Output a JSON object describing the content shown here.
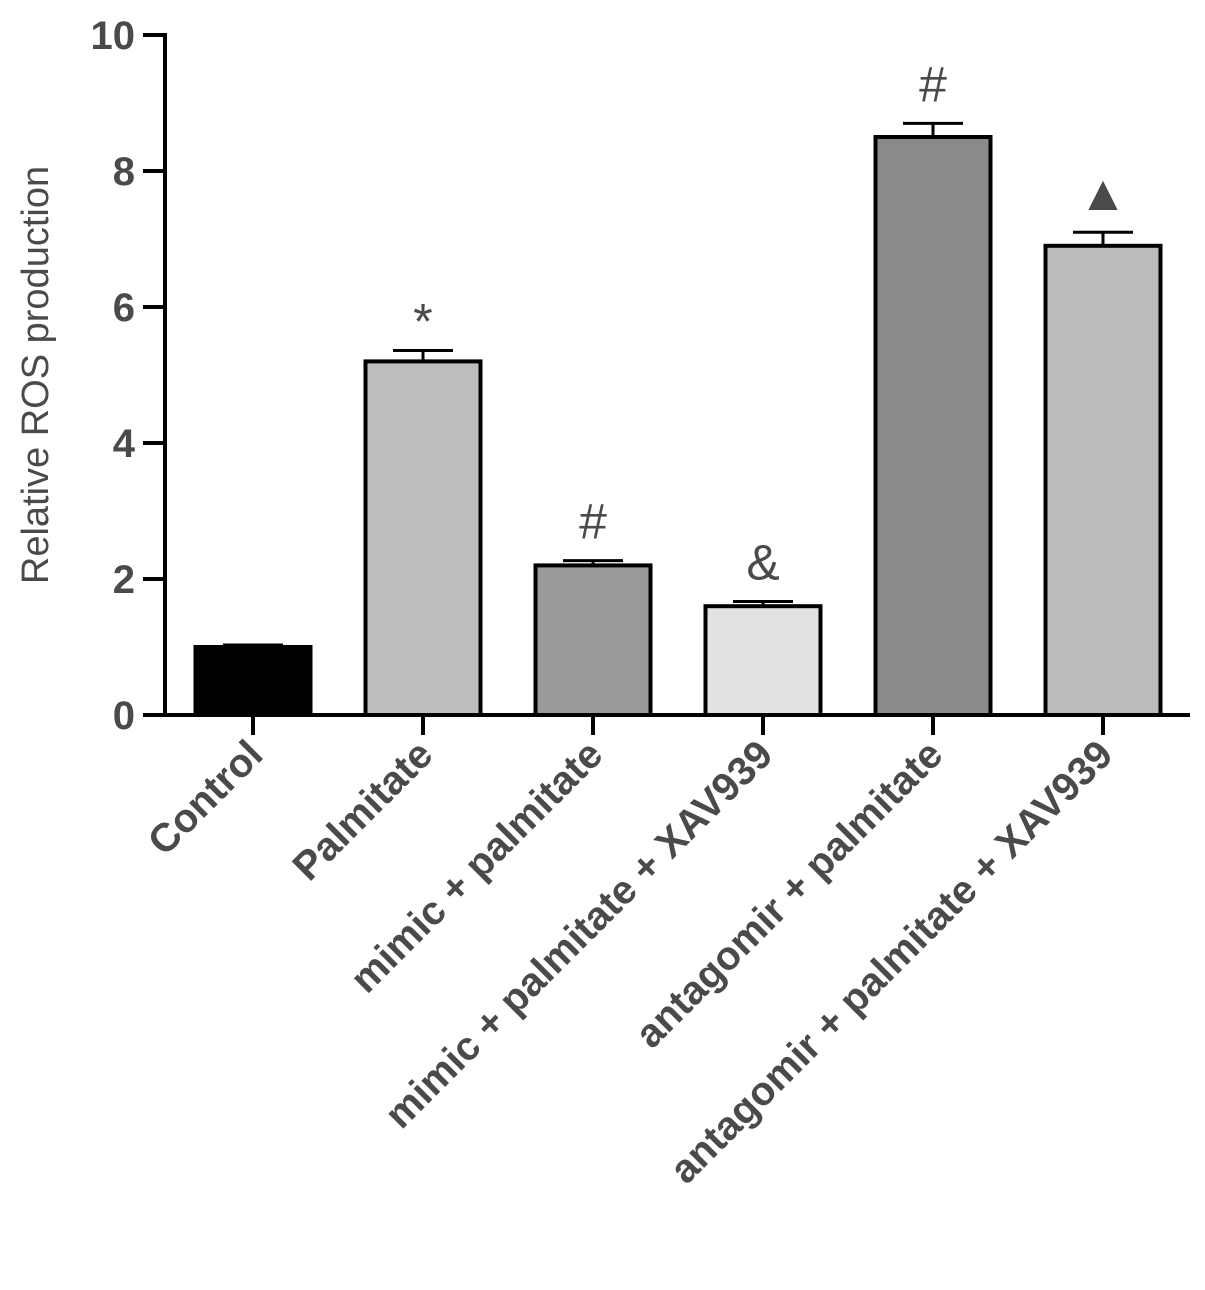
{
  "chart_data": {
    "type": "bar",
    "title": "",
    "xlabel": "",
    "ylabel": "Relative ROS production",
    "ylim": [
      0,
      10
    ],
    "yticks": [
      0,
      2,
      4,
      6,
      8,
      10
    ],
    "grid": false,
    "categories": [
      "Control",
      "Palmitate",
      "mimic + palmitate",
      "mimic + palmitate + XAV939",
      "antagomir + palmitate",
      "antagomir + palmitate + XAV939"
    ],
    "values": [
      1.0,
      5.2,
      2.2,
      1.6,
      8.5,
      6.9
    ],
    "errors": [
      0.03,
      0.16,
      0.07,
      0.07,
      0.2,
      0.2
    ],
    "annotations": [
      "",
      "*",
      "#",
      "&",
      "#",
      "▲"
    ],
    "colors": [
      "#000000",
      "#bdbdbd",
      "#9a9a9a",
      "#e2e2e2",
      "#8a8a8a",
      "#bbbbbb"
    ]
  }
}
